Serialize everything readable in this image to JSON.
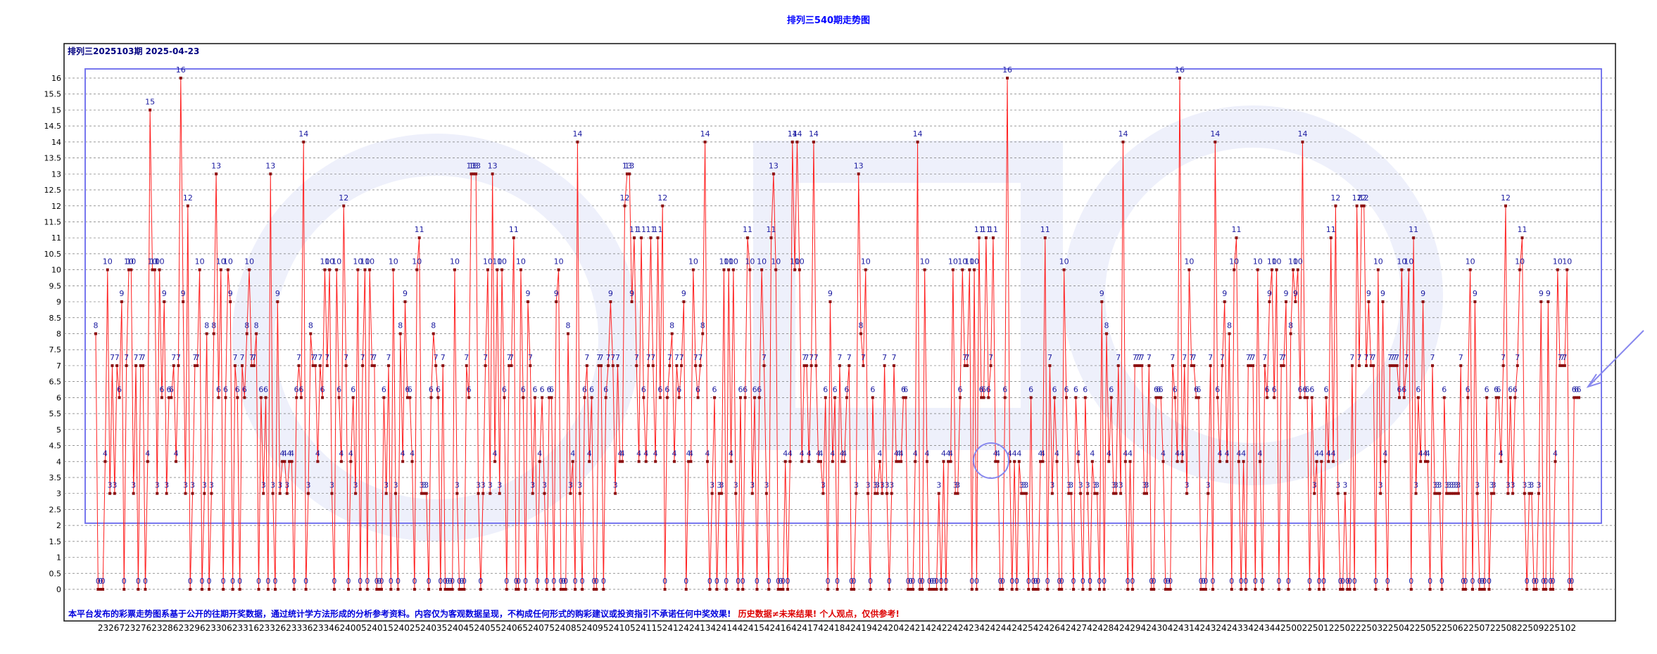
{
  "title": "排列三540期走势图",
  "chart_data": {
    "type": "line",
    "period_label": "排列三2025103期  2025-04-23",
    "y_ticks": [
      "0",
      "0.5",
      "1",
      "1.5",
      "2",
      "2.5",
      "3",
      "3.5",
      "4",
      "4.5",
      "5",
      "5.5",
      "6",
      "6.5",
      "7",
      "7.5",
      "8",
      "8.5",
      "9",
      "9.5",
      "10",
      "10.5",
      "11",
      "11.5",
      "12",
      "12.5",
      "13",
      "13.5",
      "14",
      "14.5",
      "15",
      "15.5",
      "16"
    ],
    "ylim": [
      0,
      16.5
    ],
    "x_tick_labels": [
      "23267",
      "23276",
      "23286",
      "23296",
      "23306",
      "23316",
      "23326",
      "23336",
      "23346",
      "24005",
      "24015",
      "24025",
      "24035",
      "24045",
      "24055",
      "24065",
      "24075",
      "24085",
      "24095",
      "24105",
      "24115",
      "24124",
      "24134",
      "24144",
      "24154",
      "24164",
      "24174",
      "24184",
      "24194",
      "24204",
      "24214",
      "24224",
      "24234",
      "24244",
      "24254",
      "24264",
      "24274",
      "24284",
      "24294",
      "24304",
      "24314",
      "24324",
      "24334",
      "24344",
      "25002",
      "25012",
      "25022",
      "25032",
      "25042",
      "25052",
      "25062",
      "25072",
      "25082",
      "25092",
      "25102"
    ],
    "series": [
      {
        "values": [
          8,
          0,
          0,
          0,
          4,
          10,
          3,
          7,
          3,
          7,
          6,
          9,
          0,
          7,
          10,
          10,
          3,
          7,
          0,
          7,
          7,
          0,
          4,
          15,
          10,
          10,
          3,
          10,
          6,
          9,
          3,
          6,
          6,
          7,
          4,
          7,
          16,
          9,
          3,
          12,
          0,
          3,
          7,
          7,
          10,
          0,
          3,
          8,
          0,
          3,
          8,
          13,
          6,
          10,
          0,
          6,
          10,
          9,
          0,
          7,
          6,
          0,
          7,
          6,
          8,
          10,
          7,
          7,
          8,
          0,
          6,
          3,
          6,
          0,
          13,
          3,
          0,
          9,
          3,
          4,
          4,
          3,
          4,
          4,
          0,
          6,
          7,
          6,
          14,
          0,
          3,
          8,
          7,
          7,
          4,
          7,
          6,
          10,
          7,
          10,
          3,
          0,
          10,
          6,
          4,
          12,
          7,
          0,
          4,
          6,
          3,
          10,
          0,
          7,
          10,
          0,
          10,
          7,
          7,
          0,
          0,
          0,
          6,
          3,
          7,
          0,
          10,
          3,
          0,
          8,
          4,
          9,
          6,
          6,
          4,
          0,
          10,
          11,
          3,
          3,
          3,
          0,
          6,
          8,
          7,
          6,
          0,
          7,
          0,
          0,
          0,
          0,
          10,
          3,
          0,
          0,
          0,
          7,
          6,
          13,
          13,
          13,
          3,
          0,
          3,
          7,
          10,
          3,
          13,
          4,
          10,
          3,
          10,
          6,
          0,
          7,
          7,
          11,
          0,
          0,
          10,
          6,
          0,
          9,
          7,
          3,
          6,
          0,
          4,
          6,
          3,
          0,
          6,
          6,
          0,
          9,
          10,
          0,
          0,
          0,
          8,
          3,
          4,
          0,
          14,
          3,
          0,
          6,
          7,
          4,
          6,
          0,
          0,
          7,
          7,
          0,
          6,
          7,
          9,
          7,
          3,
          7,
          4,
          4,
          12,
          13,
          13,
          9,
          11,
          7,
          4,
          11,
          6,
          4,
          7,
          11,
          7,
          4,
          11,
          6,
          12,
          0,
          6,
          7,
          8,
          4,
          7,
          6,
          7,
          9,
          0,
          4,
          4,
          10,
          7,
          6,
          7,
          8,
          14,
          4,
          0,
          3,
          6,
          0,
          3,
          3,
          10,
          0,
          10,
          4,
          10,
          3,
          0,
          6,
          0,
          6,
          11,
          10,
          3,
          6,
          0,
          6,
          10,
          7,
          3,
          0,
          11,
          13,
          10,
          0,
          0,
          0,
          4,
          0,
          4,
          14,
          10,
          14,
          10,
          4,
          7,
          7,
          4,
          7,
          14,
          7,
          4,
          4,
          3,
          6,
          0,
          9,
          4,
          6,
          0,
          7,
          4,
          4,
          6,
          7,
          0,
          0,
          3,
          13,
          8,
          7,
          10,
          3,
          0,
          6,
          3,
          3,
          4,
          3,
          7,
          3,
          0,
          3,
          7,
          4,
          4,
          4,
          6,
          6,
          0,
          0,
          0,
          4,
          14,
          0,
          0,
          10,
          4,
          0,
          0,
          0,
          0,
          3,
          0,
          4,
          0,
          4,
          4,
          10,
          3,
          3,
          6,
          10,
          7,
          7,
          10,
          0,
          10,
          0,
          11,
          6,
          6,
          11,
          6,
          7,
          11,
          4,
          4,
          0,
          0,
          6,
          16,
          4,
          0,
          4,
          0,
          4,
          3,
          3,
          3,
          0,
          6,
          0,
          0,
          0,
          4,
          4,
          11,
          0,
          7,
          3,
          6,
          4,
          0,
          0,
          10,
          6,
          3,
          3,
          0,
          6,
          4,
          3,
          0,
          6,
          3,
          0,
          4,
          3,
          3,
          0,
          9,
          0,
          8,
          4,
          6,
          3,
          3,
          7,
          3,
          14,
          4,
          0,
          4,
          0,
          7,
          7,
          7,
          7,
          3,
          3,
          7,
          0,
          0,
          6,
          6,
          6,
          4,
          0,
          0,
          0,
          7,
          6,
          4,
          16,
          4,
          7,
          3,
          10,
          7,
          7,
          6,
          6,
          0,
          0,
          0,
          3,
          7,
          0,
          14,
          6,
          4,
          7,
          9,
          4,
          8,
          0,
          10,
          11,
          4,
          0,
          4,
          0,
          7,
          7,
          7,
          0,
          10,
          4,
          0,
          7,
          6,
          9,
          10,
          6,
          10,
          0,
          7,
          7,
          9,
          0,
          8,
          10,
          9,
          10,
          6,
          14,
          6,
          6,
          0,
          6,
          3,
          4,
          0,
          4,
          0,
          6,
          4,
          11,
          4,
          12,
          3,
          0,
          0,
          3,
          0,
          0,
          7,
          0,
          12,
          7,
          12,
          12,
          7,
          9,
          7,
          7,
          0,
          10,
          3,
          9,
          4,
          0,
          7,
          7,
          7,
          7,
          6,
          10,
          6,
          7,
          10,
          0,
          11,
          3,
          6,
          4,
          9,
          4,
          4,
          0,
          7,
          3,
          3,
          3,
          0,
          6,
          3,
          3,
          3,
          3,
          3,
          3,
          7,
          0,
          0,
          6,
          10,
          0,
          9,
          3,
          0,
          0,
          0,
          6,
          0,
          3,
          3,
          6,
          6,
          4,
          7,
          12,
          3,
          6,
          3,
          6,
          7,
          10,
          11,
          3,
          0,
          3,
          3,
          0,
          0,
          3,
          9,
          0,
          0,
          9,
          0,
          0,
          4,
          10,
          7,
          7,
          7,
          10,
          0,
          0,
          6,
          6,
          6
        ]
      }
    ]
  },
  "disclaimer": {
    "part1": "本平台发布的彩票走势图系基于公开的往期开奖数据，通过统计学方法形成的分析参考资料。内容仅为客观数据呈现，不构成任何形式的购彩建议或投资指引不承诺任何中奖效果!",
    "part2": "历史数据≠未来结果! 个人观点，仅供参考!"
  },
  "colors": {
    "line": "#ff2020",
    "marker": "#8b1010",
    "label": "#1a1aa0",
    "grid": "#777777",
    "frame": "#7777ee",
    "title": "#0000ff",
    "disclaimer_blue": "#0000dd",
    "disclaimer_red": "#dd0000",
    "watermark": "#eef0fb"
  }
}
